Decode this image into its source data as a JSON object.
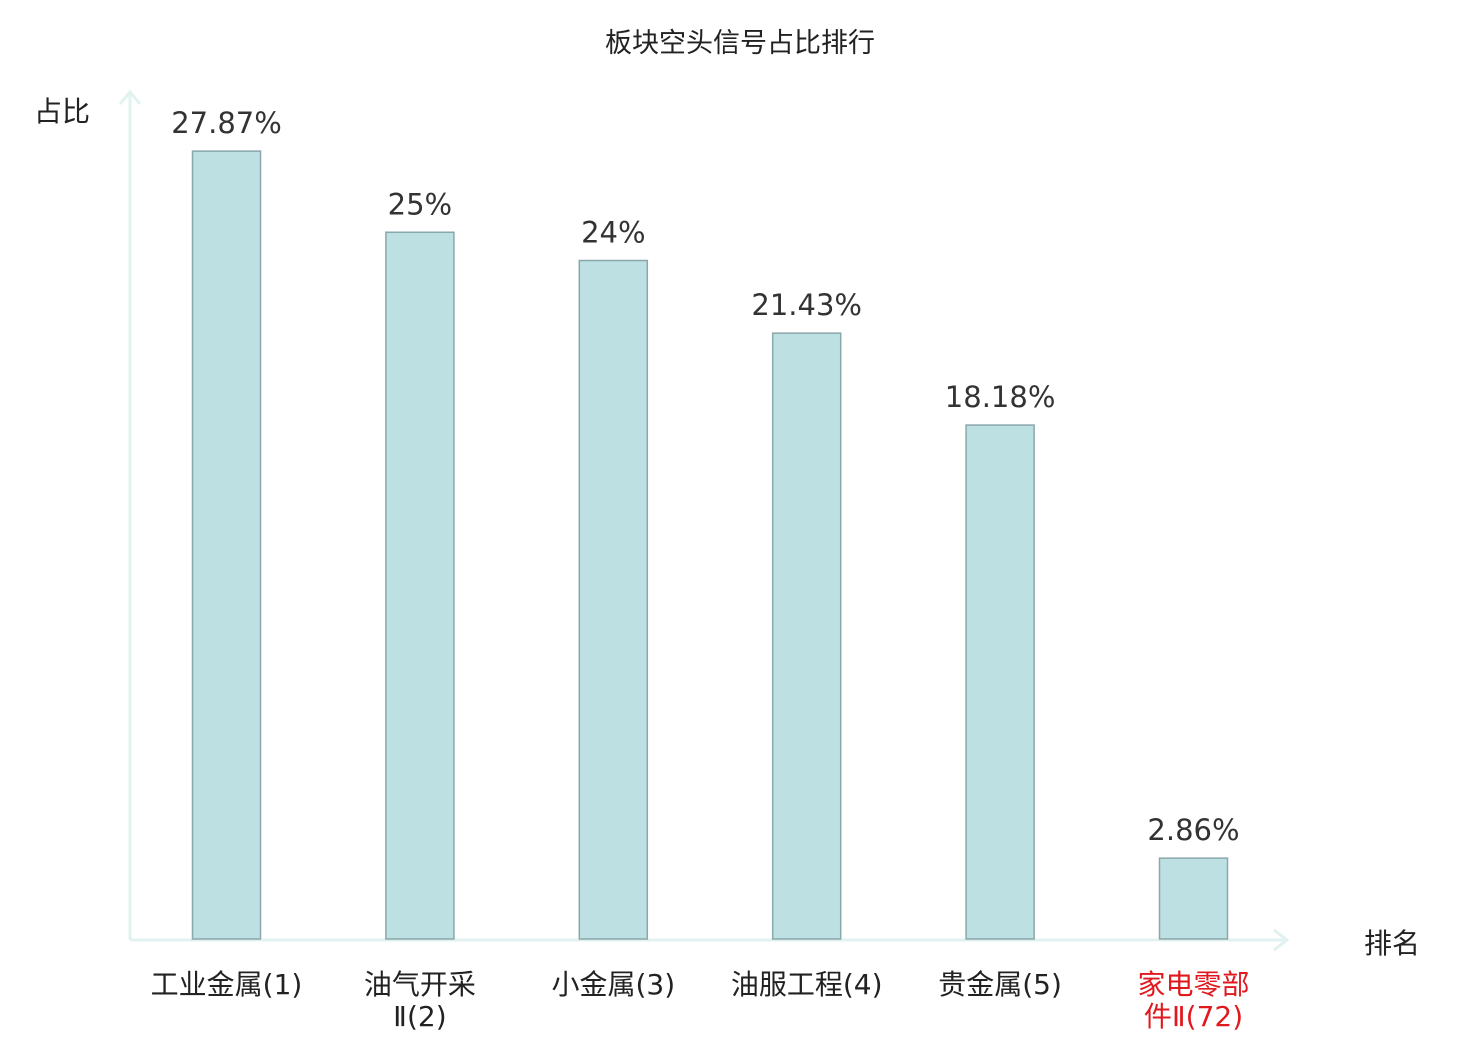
{
  "chart_data": {
    "type": "bar",
    "title": "板块空头信号占比排行",
    "ylabel": "占比",
    "xlabel": "排名",
    "categories": [
      [
        "工业金属(1)"
      ],
      [
        "油气开采",
        "Ⅱ(2)"
      ],
      [
        "小金属(3)"
      ],
      [
        "油服工程(4)"
      ],
      [
        "贵金属(5)"
      ],
      [
        "家电零部",
        "件Ⅱ(72)"
      ]
    ],
    "values": [
      27.87,
      25,
      24,
      21.43,
      18.18,
      2.86
    ],
    "value_labels": [
      "27.87%",
      "25%",
      "24%",
      "21.43%",
      "18.18%",
      "2.86%"
    ],
    "highlight_index": 5,
    "ylim": [
      0,
      29.87
    ],
    "grid": false,
    "legend": "none",
    "colors": {
      "bar_fill": "#bde0e3",
      "bar_stroke": "#8aa7ab",
      "axis": "#e2f2f1",
      "text": "#333333",
      "highlight_text": "#e0191e",
      "title": "#222222"
    }
  }
}
